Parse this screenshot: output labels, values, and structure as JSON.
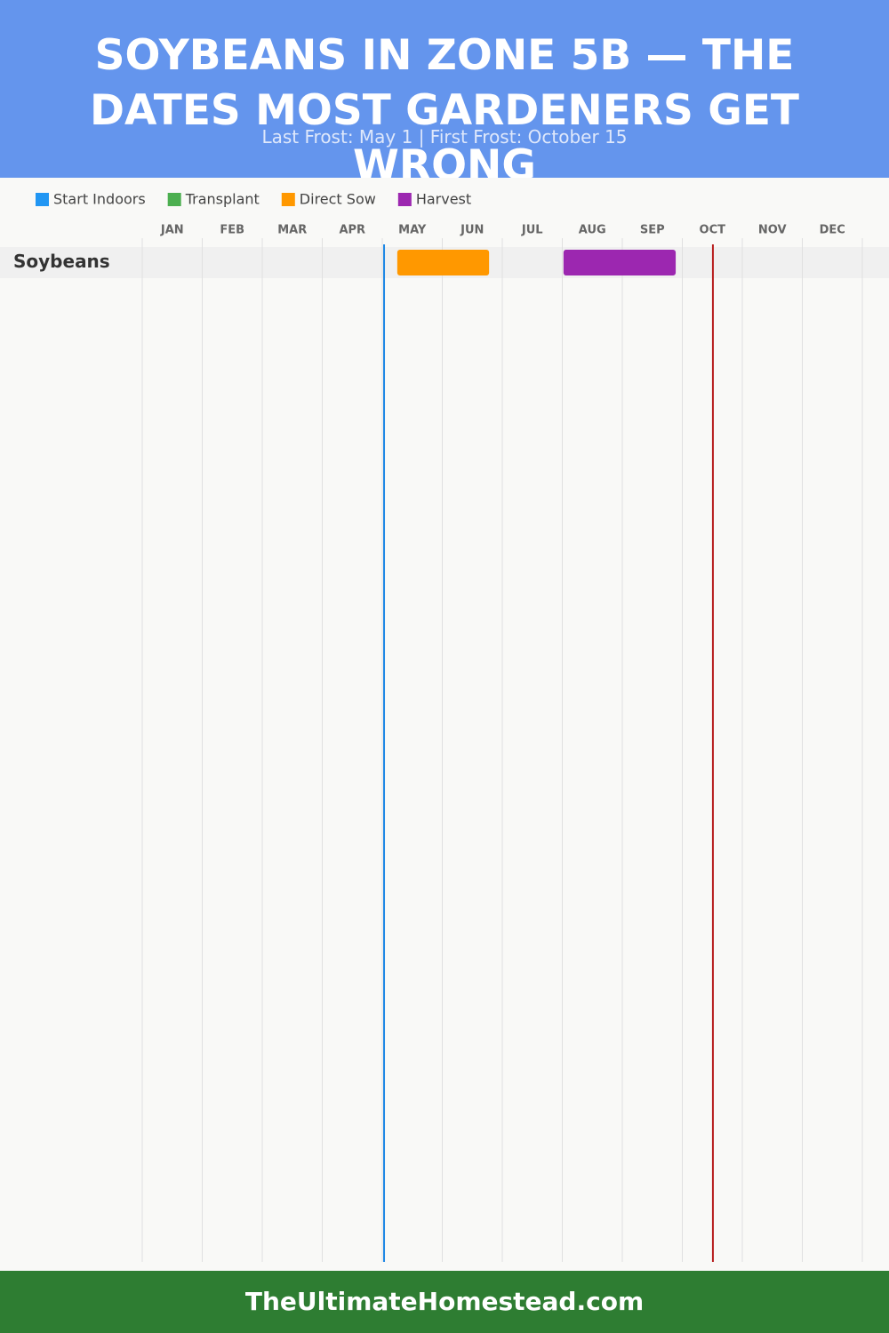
{
  "chart_data": {
    "type": "gantt",
    "title": "SOYBEANS IN ZONE 5B — THE DATES MOST GARDENERS GET WRONG",
    "subtitle": "Last Frost: May 1 | First Frost: October 15",
    "months": [
      "JAN",
      "FEB",
      "MAR",
      "APR",
      "MAY",
      "JUN",
      "JUL",
      "AUG",
      "SEP",
      "OCT",
      "NOV",
      "DEC"
    ],
    "xlim": [
      0,
      12
    ],
    "categories": [
      "Soybeans"
    ],
    "series": [
      {
        "name": "Start Indoors",
        "color": "#2196f3",
        "values": [
          null
        ]
      },
      {
        "name": "Transplant",
        "color": "#4caf50",
        "values": [
          null
        ]
      },
      {
        "name": "Direct Sow",
        "color": "#ff9800",
        "values": [
          [
            4.25,
            5.78
          ]
        ]
      },
      {
        "name": "Harvest",
        "color": "#9c27b0",
        "values": [
          [
            7.02,
            8.89
          ]
        ]
      }
    ],
    "frost_lines": [
      {
        "value": 4.03,
        "color": "#1e88e5"
      },
      {
        "value": 9.51,
        "color": "#b71c1c"
      }
    ],
    "grid": true
  },
  "footer": "TheUltimateHomestead.com"
}
